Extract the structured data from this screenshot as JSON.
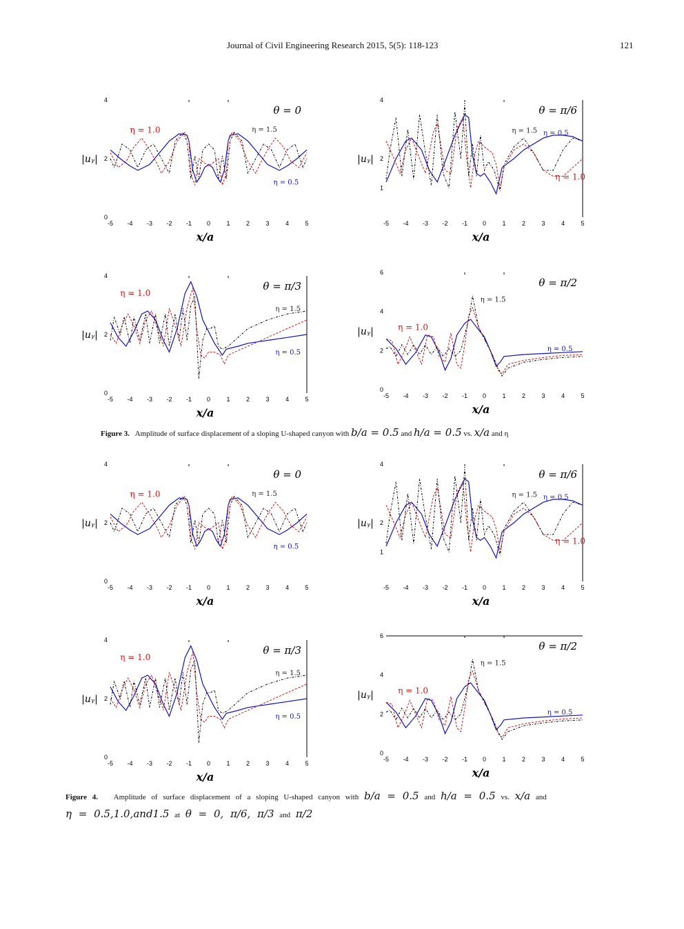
{
  "header": {
    "journal": "Journal of Civil Engineering Research 2015, 5(5): 118-123",
    "page_number": "121"
  },
  "colors": {
    "eta_0_5": "#1010d0",
    "eta_1_0": "#e01010",
    "eta_1_5": "#000000"
  },
  "figure3": {
    "label": "Figure 3.",
    "caption_text": "Amplitude of surface displacement of a sloping U-shaped canyon with",
    "m1": "b/a = 0.5",
    "and1": "and",
    "m2": "h/a = 0.5",
    "vs": "vs.",
    "m3": "x/a",
    "and2": "and η"
  },
  "figure4": {
    "label": "Figure 4.",
    "caption_text": "Amplitude of surface displacement of a sloping U-shaped canyon with",
    "m1": "b/a = 0.5",
    "and1": "and",
    "m2": "h/a = 0.5",
    "vs": "vs.",
    "m3": "x/a",
    "and2": "and",
    "m4": "η = 0.5,1.0,and1.5",
    "at": "at",
    "m5": "θ = 0, π/6, π/3",
    "and3": "and",
    "m6": "π/2"
  },
  "chart_data": [
    {
      "id": "f3a",
      "type": "line",
      "title": "θ = 0",
      "xlabel": "x/a",
      "ylabel": "|u_y|",
      "xlim": [
        -5,
        5
      ],
      "ylim": [
        0,
        4
      ],
      "xticks": [
        -5,
        -4,
        -3,
        -2,
        -1,
        0,
        1,
        2,
        3,
        4,
        5
      ],
      "yticks": [
        0,
        2,
        4
      ],
      "labels": {
        "eta_1_0": "η = 1.0",
        "eta_1_5": "η = 1.5",
        "eta_0_5": "η = 0.5"
      },
      "series": [
        {
          "name": "η = 0.5",
          "style": "solid",
          "x": [
            -5,
            -4.5,
            -4,
            -3.6,
            -3,
            -2.5,
            -2,
            -1.5,
            -1.1,
            -1,
            -0.8,
            -0.6,
            -0.4,
            -0.2,
            0,
            0.2,
            0.4,
            0.6,
            0.8,
            1,
            1.1,
            1.5,
            2,
            2.5,
            3,
            3.6,
            4,
            4.5,
            5
          ],
          "y": [
            2.3,
            2.0,
            1.75,
            1.6,
            1.8,
            2.2,
            2.6,
            2.85,
            2.8,
            2.6,
            1.6,
            1.2,
            1.4,
            1.7,
            1.8,
            1.7,
            1.4,
            1.2,
            1.6,
            2.6,
            2.8,
            2.85,
            2.6,
            2.2,
            1.8,
            1.6,
            1.75,
            2.0,
            2.3
          ]
        },
        {
          "name": "η = 1.0",
          "style": "dashed",
          "x": [
            -5,
            -4.6,
            -4.2,
            -3.8,
            -3.4,
            -3,
            -2.6,
            -2.4,
            -2,
            -1.6,
            -1.2,
            -1,
            -0.9,
            -0.7,
            -0.5,
            -0.3,
            0,
            0.3,
            0.5,
            0.7,
            0.9,
            1,
            1.2,
            1.6,
            2,
            2.4,
            2.6,
            3,
            3.4,
            3.8,
            4.2,
            4.6,
            5
          ],
          "y": [
            2.2,
            1.7,
            1.9,
            2.4,
            2.7,
            2.3,
            1.8,
            1.5,
            1.9,
            2.6,
            2.9,
            2.6,
            1.5,
            1.1,
            2.0,
            1.9,
            1.75,
            1.9,
            2.0,
            1.1,
            1.5,
            2.6,
            2.9,
            2.6,
            1.9,
            1.5,
            1.8,
            2.3,
            2.7,
            2.4,
            1.9,
            1.7,
            2.2
          ]
        },
        {
          "name": "η = 1.5",
          "style": "dashdot",
          "x": [
            -5,
            -4.8,
            -4.4,
            -4,
            -3.6,
            -3.2,
            -2.8,
            -2.4,
            -2,
            -1.7,
            -1.3,
            -1.1,
            -0.9,
            -0.7,
            -0.5,
            -0.3,
            0,
            0.3,
            0.5,
            0.7,
            0.9,
            1.1,
            1.3,
            1.7,
            2,
            2.4,
            2.8,
            3.2,
            3.6,
            4,
            4.4,
            4.8,
            5
          ],
          "y": [
            2.0,
            1.7,
            2.5,
            2.3,
            1.7,
            2.3,
            2.5,
            2.0,
            1.5,
            2.6,
            2.9,
            2.6,
            1.3,
            2.1,
            1.3,
            2.3,
            2.5,
            2.3,
            1.3,
            2.1,
            1.3,
            2.6,
            2.9,
            2.6,
            1.5,
            2.0,
            2.5,
            2.3,
            1.7,
            2.3,
            2.5,
            1.7,
            2.0
          ]
        }
      ]
    },
    {
      "id": "f3b",
      "type": "line",
      "title": "θ = π/6",
      "xlabel": "x/a",
      "ylabel": "|u_y|",
      "xlim": [
        -5,
        5
      ],
      "ylim": [
        0,
        4
      ],
      "xticks": [
        -5,
        -4,
        -3,
        -2,
        -1,
        0,
        1,
        2,
        3,
        4,
        5
      ],
      "yticks": [
        1,
        2,
        4
      ],
      "labels": {
        "eta_1_5": "η = 1.5",
        "eta_0_5": "η = 0.5",
        "eta_1_0": "η = 1.0"
      },
      "series": [
        {
          "name": "η = 0.5",
          "style": "solid",
          "x": [
            -5,
            -4.5,
            -4,
            -3.7,
            -3.2,
            -2.8,
            -2.4,
            -2,
            -1.5,
            -1,
            -0.8,
            -0.6,
            -0.4,
            -0.2,
            0,
            0.3,
            0.6,
            0.8,
            0.9,
            1.5,
            2,
            3,
            3.5,
            4,
            4.5,
            5
          ],
          "y": [
            1.2,
            2.0,
            2.6,
            2.7,
            2.3,
            1.6,
            1.2,
            1.9,
            2.8,
            3.5,
            3.4,
            2.1,
            1.5,
            1.4,
            1.5,
            1.2,
            0.8,
            1.4,
            1.7,
            2.0,
            2.3,
            2.7,
            2.8,
            2.8,
            2.75,
            2.6
          ]
        },
        {
          "name": "η = 1.0",
          "style": "dashed",
          "x": [
            -5,
            -4.6,
            -4.3,
            -4,
            -3.7,
            -3.3,
            -3,
            -2.6,
            -2.4,
            -2,
            -1.7,
            -1.4,
            -1.1,
            -0.9,
            -0.7,
            -0.5,
            -0.3,
            0,
            0.4,
            0.6,
            0.8,
            1,
            1.5,
            2,
            2.5,
            3,
            3.5,
            4,
            4.5,
            5
          ],
          "y": [
            2.6,
            2.0,
            1.5,
            2.3,
            2.7,
            2.0,
            1.5,
            2.9,
            3.2,
            1.6,
            1.5,
            3.0,
            3.4,
            2.0,
            1.0,
            2.1,
            2.6,
            2.4,
            2.2,
            1.8,
            1.0,
            1.7,
            2.3,
            2.5,
            2.2,
            1.6,
            1.4,
            1.4,
            1.7,
            2.0
          ]
        },
        {
          "name": "η = 1.5",
          "style": "dashdot",
          "x": [
            -5,
            -4.8,
            -4.5,
            -4.2,
            -3.9,
            -3.6,
            -3.3,
            -3,
            -2.7,
            -2.4,
            -2.1,
            -1.8,
            -1.5,
            -1.2,
            -1,
            -0.8,
            -0.6,
            -0.4,
            -0.2,
            0,
            0.2,
            0.5,
            0.8,
            1,
            1.5,
            2,
            2.5,
            3,
            3.5,
            4,
            4.5,
            5
          ],
          "y": [
            1.3,
            2.3,
            3.4,
            1.4,
            3.0,
            1.3,
            3.5,
            2.2,
            1.1,
            3.5,
            1.5,
            1.0,
            3.6,
            2.0,
            3.9,
            1.4,
            2.5,
            1.4,
            2.8,
            1.6,
            1.9,
            1.6,
            0.9,
            1.8,
            2.4,
            2.7,
            2.2,
            1.6,
            1.6,
            2.3,
            2.7,
            2.6
          ]
        }
      ]
    },
    {
      "id": "f3c",
      "type": "line",
      "title": "θ = π/3",
      "xlabel": "x/a",
      "ylabel": "|u_y|",
      "xlim": [
        -5,
        5
      ],
      "ylim": [
        0,
        4
      ],
      "xticks": [
        -5,
        -4,
        -3,
        -2,
        -1,
        0,
        1,
        2,
        3,
        4,
        5
      ],
      "yticks": [
        0,
        2,
        4
      ],
      "labels": {
        "eta_1_0": "η = 1.0",
        "eta_1_5": "η = 1.5",
        "eta_0_5": "η = 0.5"
      },
      "series": [
        {
          "name": "η = 0.5",
          "style": "solid",
          "x": [
            -5,
            -4.6,
            -4.2,
            -3.8,
            -3.4,
            -3.1,
            -2.7,
            -2.3,
            -2,
            -1.6,
            -1.2,
            -0.9,
            -0.6,
            -0.3,
            0,
            0.3,
            0.7,
            0.9,
            1.5,
            2,
            3,
            4,
            5
          ],
          "y": [
            2.4,
            1.9,
            1.6,
            2.1,
            2.7,
            2.8,
            2.5,
            1.8,
            1.4,
            2.2,
            3.4,
            3.8,
            3.3,
            2.5,
            2.1,
            1.7,
            1.3,
            1.5,
            1.6,
            1.7,
            1.8,
            1.9,
            2.0
          ]
        },
        {
          "name": "η = 1.0",
          "style": "dashed",
          "x": [
            -5,
            -4.7,
            -4.4,
            -4.1,
            -3.8,
            -3.5,
            -3.2,
            -2.9,
            -2.6,
            -2.3,
            -2,
            -1.7,
            -1.4,
            -1.1,
            -0.8,
            -0.6,
            -0.4,
            -0.2,
            0,
            0.3,
            0.6,
            0.8,
            1,
            2,
            3,
            4,
            5
          ],
          "y": [
            2.0,
            1.7,
            2.3,
            2.7,
            2.3,
            1.7,
            2.5,
            2.8,
            2.2,
            1.6,
            2.9,
            2.3,
            1.6,
            2.9,
            3.6,
            2.2,
            1.3,
            1.2,
            1.4,
            1.4,
            1.3,
            1.0,
            1.3,
            1.6,
            1.9,
            2.2,
            2.5
          ]
        },
        {
          "name": "η = 1.5",
          "style": "dashdot",
          "x": [
            -5,
            -4.8,
            -4.5,
            -4.3,
            -4,
            -3.8,
            -3.5,
            -3.2,
            -3,
            -2.7,
            -2.5,
            -2.2,
            -2,
            -1.7,
            -1.5,
            -1.3,
            -1.1,
            -0.9,
            -0.7,
            -0.5,
            -0.3,
            -0.1,
            0.1,
            0.3,
            0.5,
            0.7,
            1,
            1.5,
            2,
            3,
            4,
            5
          ],
          "y": [
            1.8,
            2.6,
            2.0,
            2.6,
            1.7,
            2.6,
            1.8,
            2.7,
            1.7,
            2.7,
            1.7,
            2.7,
            1.6,
            2.7,
            1.8,
            2.9,
            1.8,
            3.0,
            3.3,
            0.5,
            1.8,
            2.2,
            2.2,
            2.3,
            1.6,
            1.5,
            1.6,
            1.9,
            2.2,
            2.5,
            2.7,
            2.8
          ]
        }
      ]
    },
    {
      "id": "f3d",
      "type": "line",
      "title": "θ = π/2",
      "xlabel": "x/a",
      "ylabel": "|u_y|",
      "xlim": [
        -5,
        5
      ],
      "ylim": [
        0,
        6
      ],
      "xticks": [
        -5,
        -4,
        -3,
        -2,
        -1,
        0,
        1,
        2,
        3,
        4,
        5
      ],
      "yticks": [
        0,
        2,
        4,
        6
      ],
      "labels": {
        "eta_1_5": "η = 1.5",
        "eta_1_0": "η = 1.0",
        "eta_0_5": "η = 0.5"
      },
      "series": [
        {
          "name": "η = 0.5",
          "style": "solid",
          "x": [
            -5,
            -4.5,
            -4,
            -3.5,
            -3,
            -2.7,
            -2.3,
            -2,
            -1.7,
            -1.4,
            -1,
            -0.7,
            -0.4,
            0,
            0.3,
            0.6,
            0.8,
            1,
            2,
            3,
            4,
            5
          ],
          "y": [
            2.6,
            2.1,
            1.3,
            1.9,
            2.8,
            2.7,
            1.9,
            1.0,
            1.6,
            2.8,
            3.4,
            3.6,
            3.2,
            2.7,
            2.0,
            1.2,
            1.4,
            1.7,
            1.8,
            1.85,
            1.9,
            1.95
          ]
        },
        {
          "name": "η = 1.0",
          "style": "dashed",
          "x": [
            -5,
            -4.7,
            -4.4,
            -4.1,
            -3.8,
            -3.5,
            -3.2,
            -2.9,
            -2.6,
            -2.3,
            -2,
            -1.7,
            -1.4,
            -1.2,
            -1,
            -0.8,
            -0.6,
            -0.3,
            0,
            0.4,
            0.7,
            0.9,
            1.2,
            2,
            3,
            4,
            5
          ],
          "y": [
            2.6,
            2.5,
            1.3,
            1.9,
            2.7,
            2.0,
            1.3,
            2.8,
            2.7,
            1.7,
            1.4,
            2.9,
            1.3,
            1.1,
            2.3,
            3.8,
            4.2,
            3.2,
            2.6,
            1.8,
            1.0,
            0.8,
            1.3,
            1.5,
            1.65,
            1.75,
            1.8
          ]
        },
        {
          "name": "η = 1.5",
          "style": "dashdot",
          "x": [
            -5,
            -4.8,
            -4.5,
            -4.2,
            -3.9,
            -3.6,
            -3.3,
            -3,
            -2.7,
            -2.4,
            -2.1,
            -1.8,
            -1.5,
            -1.2,
            -1,
            -0.8,
            -0.6,
            -0.3,
            0,
            0.4,
            0.7,
            0.9,
            1.2,
            2,
            3,
            4,
            5
          ],
          "y": [
            2.1,
            2.2,
            1.7,
            2.3,
            1.8,
            2.3,
            1.8,
            2.3,
            1.8,
            2.2,
            1.7,
            2.1,
            1.7,
            2.0,
            2.8,
            3.6,
            4.8,
            3.2,
            2.6,
            1.8,
            1.1,
            0.7,
            1.1,
            1.4,
            1.55,
            1.65,
            1.7
          ]
        }
      ]
    },
    {
      "id": "f4a",
      "type": "line",
      "title": "θ = 0",
      "xlabel": "x/a",
      "ylabel": "|u_y|",
      "xlim": [
        -5,
        5
      ],
      "ylim": [
        0,
        4
      ],
      "xticks": [
        -5,
        -4,
        -3,
        -2,
        -1,
        0,
        1,
        2,
        3,
        4,
        5
      ],
      "yticks": [
        0,
        2,
        4
      ],
      "labels": {
        "eta_1_0": "η = 1.0",
        "eta_1_5": "η = 1.5",
        "eta_0_5": "η = 0.5"
      },
      "series_ref": "f3a"
    },
    {
      "id": "f4b",
      "type": "line",
      "title": "θ = π/6",
      "xlabel": "x/a",
      "ylabel": "|u_y|",
      "xlim": [
        -5,
        5
      ],
      "ylim": [
        0,
        4
      ],
      "xticks": [
        -5,
        -4,
        -3,
        -2,
        -1,
        0,
        1,
        2,
        3,
        4,
        5
      ],
      "yticks": [
        1,
        2,
        4
      ],
      "labels": {
        "eta_1_5": "η = 1.5",
        "eta_0_5": "η = 0.5",
        "eta_1_0": "η = 1.0"
      },
      "series_ref": "f3b"
    },
    {
      "id": "f4c",
      "type": "line",
      "title": "θ = π/3",
      "xlabel": "x/a",
      "ylabel": "|u_y|",
      "xlim": [
        -5,
        5
      ],
      "ylim": [
        0,
        4
      ],
      "xticks": [
        -5,
        -4,
        -3,
        -2,
        -1,
        0,
        1,
        2,
        3,
        4,
        5
      ],
      "yticks": [
        0,
        2,
        4
      ],
      "labels": {
        "eta_1_0": "η = 1.0",
        "eta_1_5": "η = 1.5",
        "eta_0_5": "η = 0.5"
      },
      "series_ref": "f3c"
    },
    {
      "id": "f4d",
      "type": "line",
      "title": "θ = π/2",
      "xlabel": "x/a",
      "ylabel": "|u_y|",
      "xlim": [
        -5,
        5
      ],
      "ylim": [
        0,
        6
      ],
      "xticks": [
        -5,
        -4,
        -3,
        -2,
        -1,
        0,
        1,
        2,
        3,
        4,
        5
      ],
      "yticks": [
        0,
        2,
        4,
        6
      ],
      "labels": {
        "eta_1_5": "η = 1.5",
        "eta_1_0": "η = 1.0",
        "eta_0_5": "η = 0.5"
      },
      "series_ref": "f3d"
    }
  ]
}
